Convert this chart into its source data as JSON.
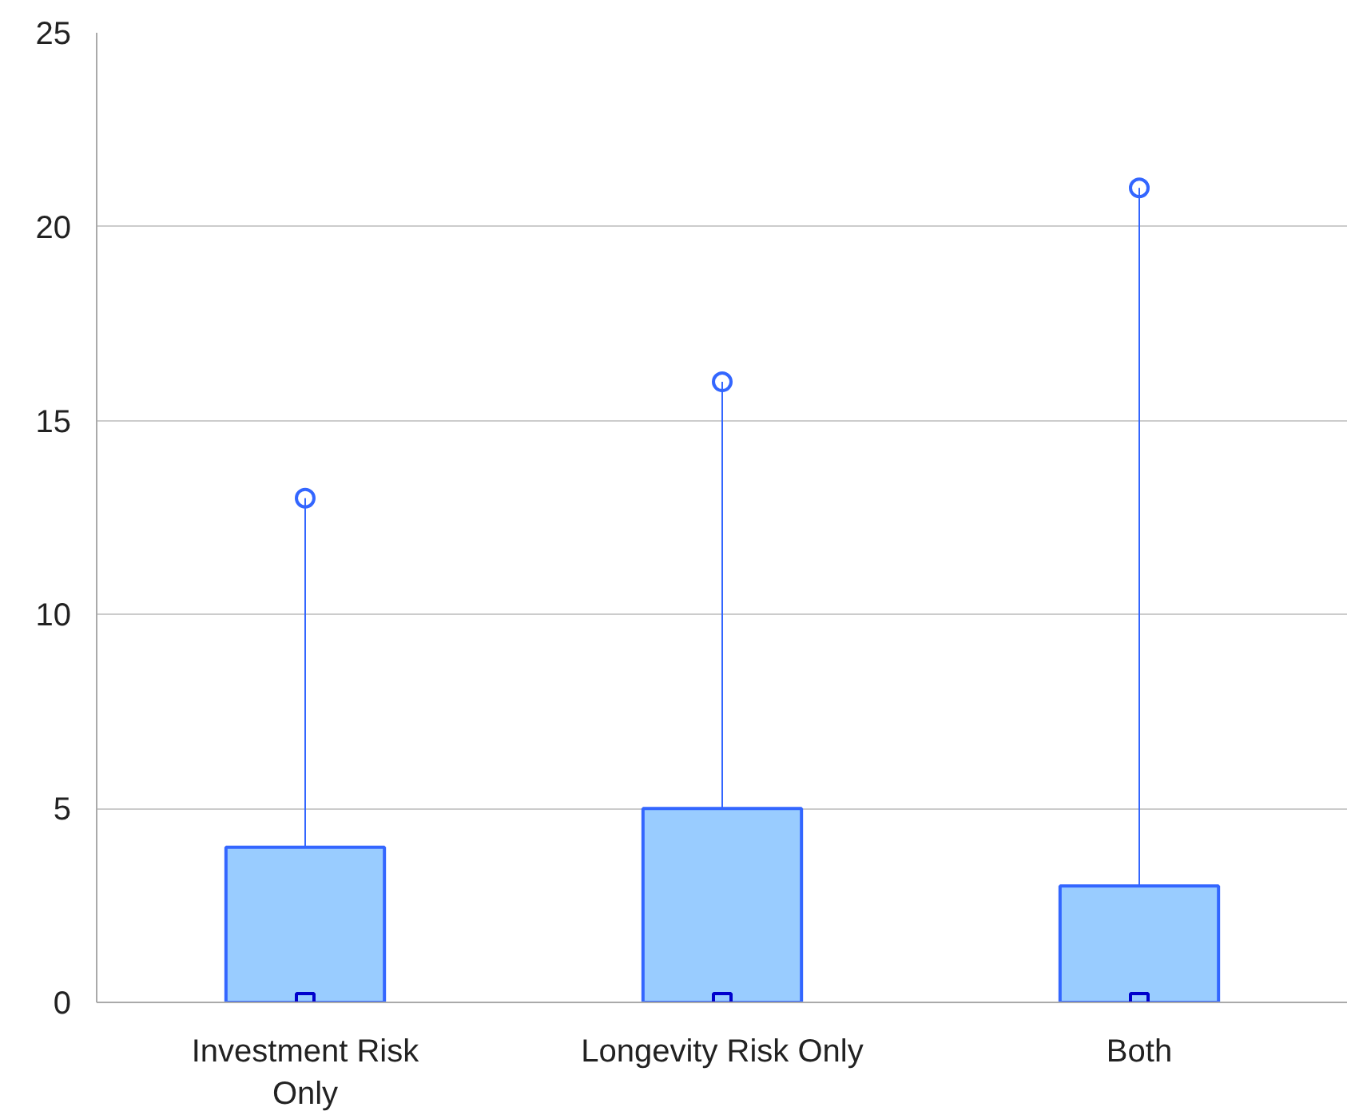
{
  "chart_data": {
    "type": "box",
    "categories": [
      "Investment Risk Only",
      "Longevity Risk Only",
      "Both"
    ],
    "boxes": [
      {
        "low": 0,
        "q1": 0,
        "median": 0,
        "q3": 4,
        "high": 13,
        "mean": 0,
        "outliers": [
          13
        ]
      },
      {
        "low": 0,
        "q1": 0,
        "median": 0,
        "q3": 5,
        "high": 16,
        "mean": 0,
        "outliers": [
          16
        ]
      },
      {
        "low": 0,
        "q1": 0,
        "median": 0,
        "q3": 3,
        "high": 21,
        "mean": 0,
        "outliers": [
          21
        ]
      }
    ],
    "ylim": [
      0,
      25
    ],
    "yticks": [
      0,
      5,
      10,
      15,
      20,
      25
    ],
    "grid": "y"
  }
}
